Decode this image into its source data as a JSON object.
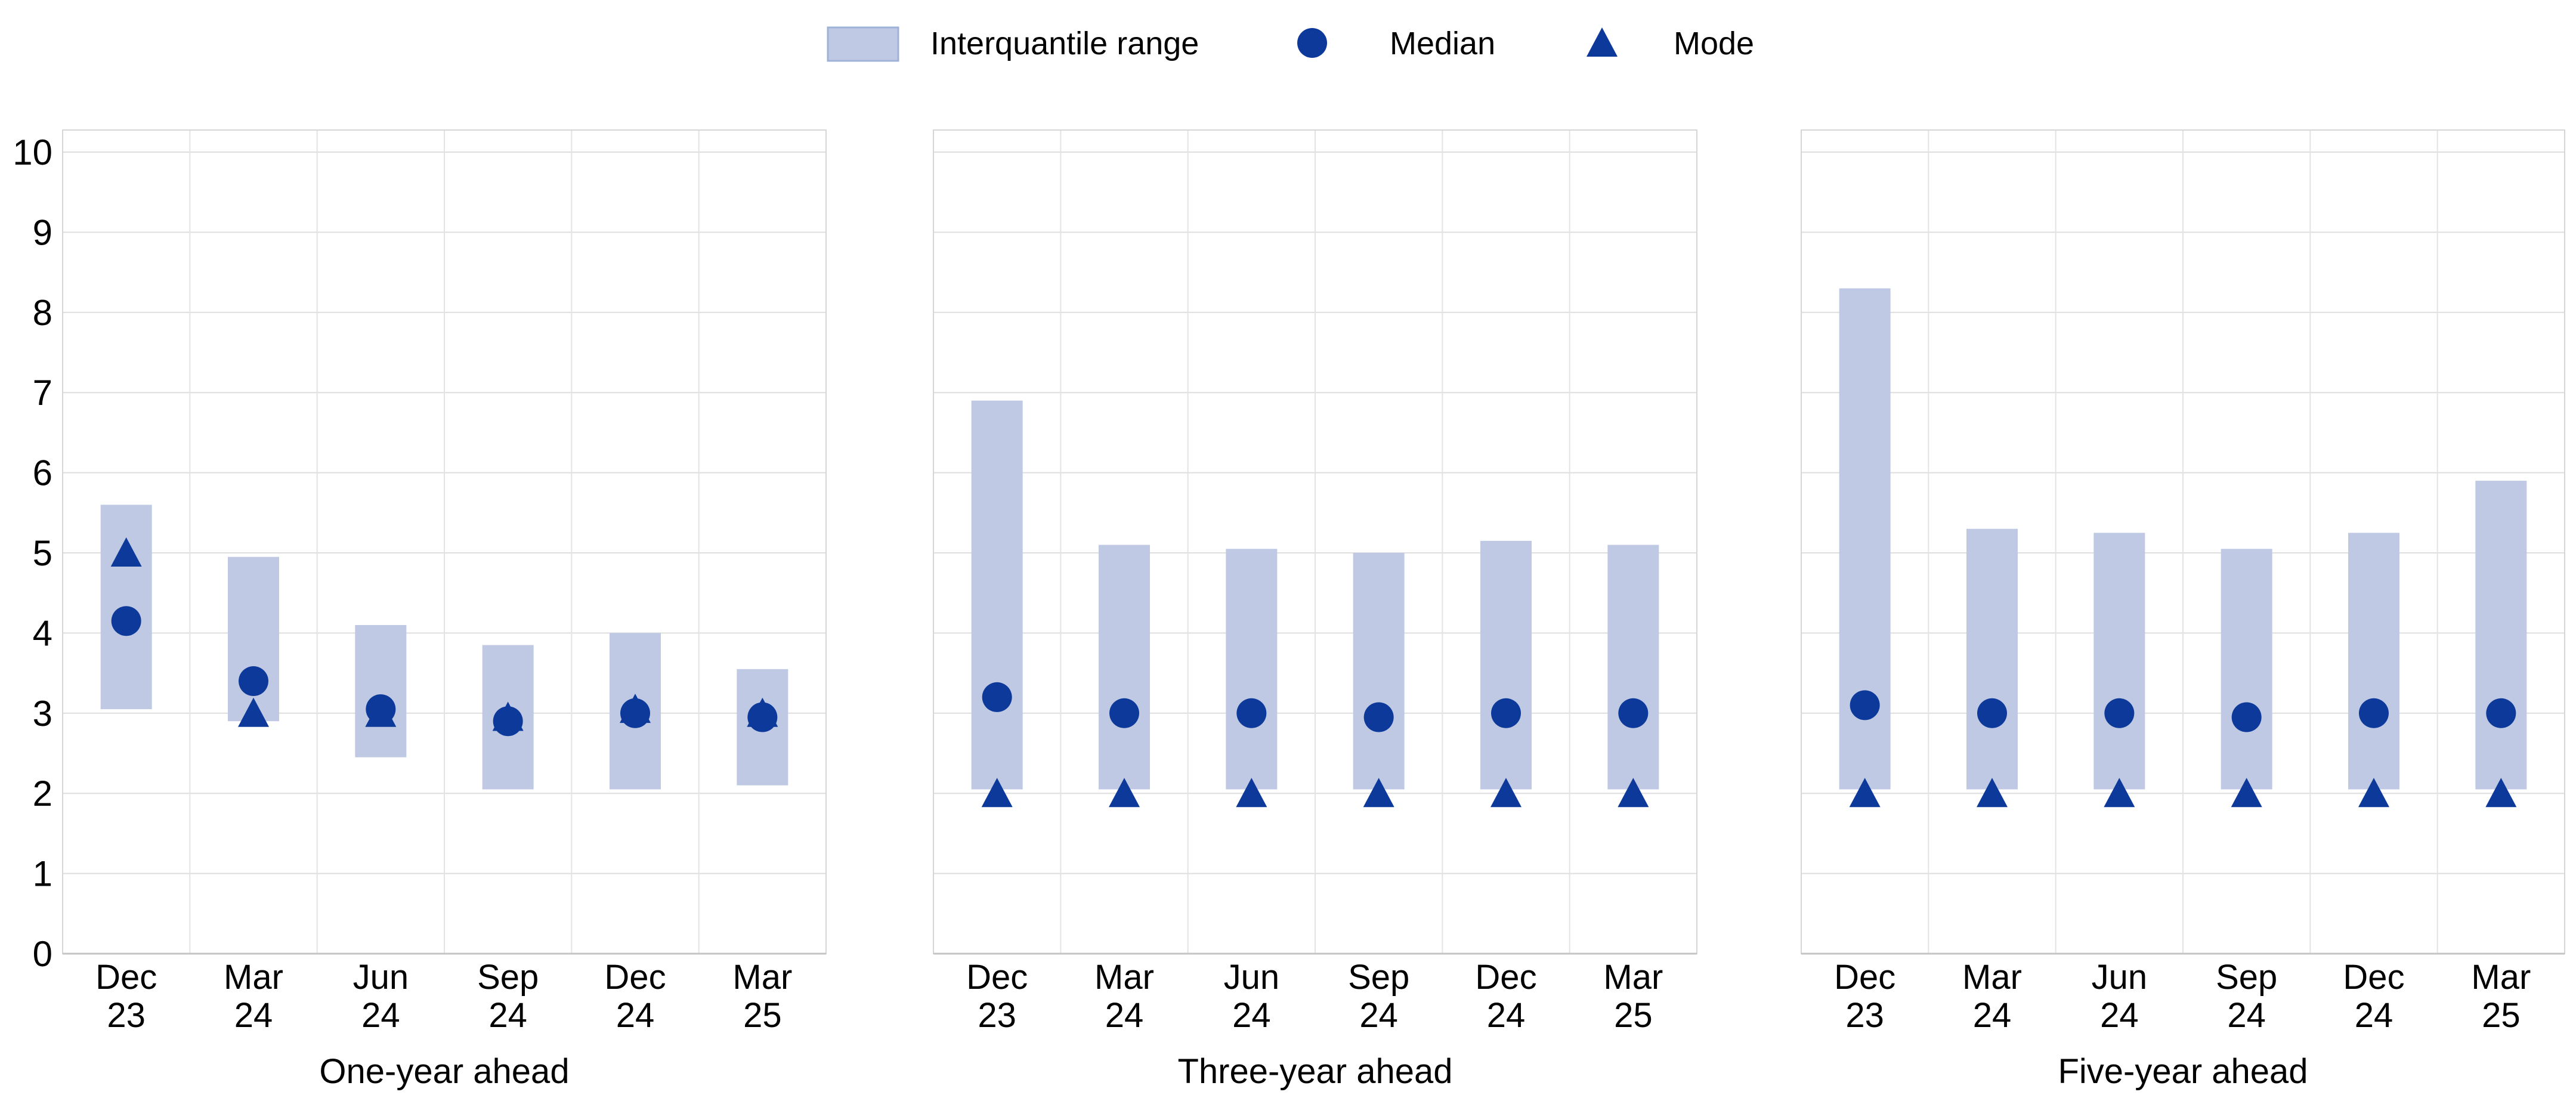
{
  "legend": {
    "items": [
      {
        "label": "Interquantile range",
        "marker": "swatch"
      },
      {
        "label": "Median",
        "marker": "circle"
      },
      {
        "label": "Mode",
        "marker": "triangle"
      }
    ]
  },
  "colors": {
    "bar_fill": "#bfc9e3",
    "swatch_border": "#a0b1d8",
    "marker": "#0d3a9a",
    "gridline": "#dedede",
    "separator": "#e3e3e3",
    "panel_border": "#d6d6d6",
    "axis_line": "#c4c4c4",
    "text": "#000000"
  },
  "chart_data": [
    {
      "type": "bar",
      "title": "One-year ahead",
      "categories": [
        "Dec 23",
        "Mar 24",
        "Jun 24",
        "Sep 24",
        "Dec 24",
        "Mar 25"
      ],
      "series": [
        {
          "name": "Interquantile range",
          "kind": "range",
          "low": [
            3.05,
            2.9,
            2.45,
            2.05,
            2.05,
            2.1
          ],
          "high": [
            5.6,
            4.95,
            4.1,
            3.85,
            4.0,
            3.55
          ]
        },
        {
          "name": "Median",
          "kind": "point-circle",
          "values": [
            4.15,
            3.4,
            3.05,
            2.9,
            3.0,
            2.95
          ]
        },
        {
          "name": "Mode",
          "kind": "point-triangle",
          "values": [
            5.0,
            3.0,
            3.0,
            2.95,
            3.05,
            3.0
          ]
        }
      ],
      "ylim": [
        0,
        10.3
      ],
      "y_ticks": [
        0,
        1,
        2,
        3,
        4,
        5,
        6,
        7,
        8,
        9,
        10
      ],
      "grid": "horizontal-integer-lines+vertical-category-separators",
      "legend_position": "top-center"
    },
    {
      "type": "bar",
      "title": "Three-year ahead",
      "categories": [
        "Dec 23",
        "Mar 24",
        "Jun 24",
        "Sep 24",
        "Dec 24",
        "Mar 25"
      ],
      "series": [
        {
          "name": "Interquantile range",
          "kind": "range",
          "low": [
            2.05,
            2.05,
            2.05,
            2.05,
            2.05,
            2.05
          ],
          "high": [
            6.9,
            5.1,
            5.05,
            5.0,
            5.15,
            5.1
          ]
        },
        {
          "name": "Median",
          "kind": "point-circle",
          "values": [
            3.2,
            3.0,
            3.0,
            2.95,
            3.0,
            3.0
          ]
        },
        {
          "name": "Mode",
          "kind": "point-triangle",
          "values": [
            2.0,
            2.0,
            2.0,
            2.0,
            2.0,
            2.0
          ]
        }
      ],
      "ylim": [
        0,
        10.3
      ],
      "y_ticks": [
        0,
        1,
        2,
        3,
        4,
        5,
        6,
        7,
        8,
        9,
        10
      ],
      "grid": "horizontal-integer-lines+vertical-category-separators",
      "legend_position": "top-center"
    },
    {
      "type": "bar",
      "title": "Five-year ahead",
      "categories": [
        "Dec 23",
        "Mar 24",
        "Jun 24",
        "Sep 24",
        "Dec 24",
        "Mar 25"
      ],
      "series": [
        {
          "name": "Interquantile range",
          "kind": "range",
          "low": [
            2.05,
            2.05,
            2.05,
            2.05,
            2.05,
            2.05
          ],
          "high": [
            8.3,
            5.3,
            5.25,
            5.05,
            5.25,
            5.9
          ]
        },
        {
          "name": "Median",
          "kind": "point-circle",
          "values": [
            3.1,
            3.0,
            3.0,
            2.95,
            3.0,
            3.0
          ]
        },
        {
          "name": "Mode",
          "kind": "point-triangle",
          "values": [
            2.0,
            2.0,
            2.0,
            2.0,
            2.0,
            2.0
          ]
        }
      ],
      "ylim": [
        0,
        10.3
      ],
      "y_ticks": [
        0,
        1,
        2,
        3,
        4,
        5,
        6,
        7,
        8,
        9,
        10
      ],
      "grid": "horizontal-integer-lines+vertical-category-separators",
      "legend_position": "top-center"
    }
  ]
}
